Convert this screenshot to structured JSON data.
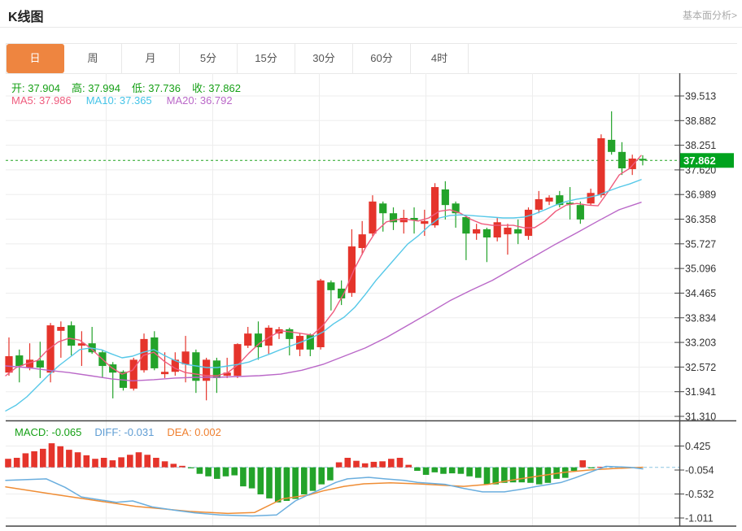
{
  "header": {
    "title": "K线图",
    "link_label": "基本面分析>"
  },
  "tabs": {
    "items": [
      {
        "label": "日",
        "active": true
      },
      {
        "label": "周"
      },
      {
        "label": "月"
      },
      {
        "label": "5分"
      },
      {
        "label": "15分"
      },
      {
        "label": "30分"
      },
      {
        "label": "60分"
      },
      {
        "label": "4时"
      }
    ]
  },
  "ohlc": {
    "open": "开: 37.904",
    "high": "高: 37.994",
    "low": "低: 37.736",
    "close": "收: 37.862"
  },
  "ma_legend": {
    "ma5": "MA5: 37.986",
    "ma10": "MA10: 37.365",
    "ma20": "MA20: 36.792"
  },
  "macd_legend": {
    "macd": "MACD: -0.065",
    "diff": "DIFF: -0.031",
    "dea": "DEA: 0.002"
  },
  "chart_data": {
    "type": "candlestick",
    "title": "K线图",
    "period_selected": "日",
    "current_price": 37.862,
    "current_price_label": "37.862",
    "open": 37.904,
    "high": 37.994,
    "low": 37.736,
    "close": 37.862,
    "ma5_value": 37.986,
    "ma10_value": 37.365,
    "ma20_value": 36.792,
    "colors": {
      "up": "#e5342b",
      "down": "#23a32a",
      "price_tag": "#00a31e",
      "ma5": "#ef5b7d",
      "ma10": "#56c8e8",
      "ma20": "#ba68c8",
      "diff_line": "#6aaede",
      "dea_line": "#ef8d35",
      "grid": "#ededed",
      "frame": "#444444",
      "dashed_price": "#21a321",
      "dashed_zero": "#8cc6e2"
    },
    "price_axis": {
      "ticks": [
        39.513,
        38.882,
        38.251,
        37.62,
        36.989,
        36.358,
        35.727,
        35.096,
        34.465,
        33.834,
        33.203,
        32.572,
        31.941,
        31.31
      ]
    },
    "candles_ohlc": [
      [
        32.43,
        33.33,
        32.35,
        32.85
      ],
      [
        32.87,
        33.02,
        32.18,
        32.6
      ],
      [
        32.56,
        33.18,
        32.49,
        32.76
      ],
      [
        32.74,
        33.22,
        32.29,
        32.56
      ],
      [
        32.43,
        33.7,
        32.18,
        33.64
      ],
      [
        33.5,
        33.74,
        32.81,
        33.6
      ],
      [
        33.64,
        33.74,
        32.87,
        33.12
      ],
      [
        33.12,
        33.49,
        32.6,
        33.18
      ],
      [
        33.18,
        33.6,
        32.91,
        32.95
      ],
      [
        32.95,
        33.02,
        32.29,
        32.6
      ],
      [
        32.64,
        32.7,
        31.77,
        32.43
      ],
      [
        32.45,
        32.49,
        31.97,
        32.04
      ],
      [
        32.02,
        32.81,
        31.97,
        32.76
      ],
      [
        32.49,
        33.43,
        32.43,
        33.29
      ],
      [
        33.33,
        33.49,
        32.49,
        32.54
      ],
      [
        32.39,
        32.95,
        32.29,
        32.45
      ],
      [
        32.45,
        32.95,
        32.35,
        32.76
      ],
      [
        32.64,
        33.37,
        32.18,
        32.97
      ],
      [
        32.95,
        33.02,
        31.91,
        32.22
      ],
      [
        32.22,
        32.81,
        31.72,
        32.76
      ],
      [
        32.74,
        32.81,
        31.91,
        32.29
      ],
      [
        32.35,
        32.81,
        32.29,
        32.43
      ],
      [
        32.35,
        33.18,
        32.29,
        33.16
      ],
      [
        33.12,
        33.6,
        33.06,
        33.43
      ],
      [
        33.43,
        33.74,
        32.76,
        33.08
      ],
      [
        33.12,
        33.64,
        32.91,
        33.58
      ],
      [
        33.43,
        33.6,
        33.29,
        33.54
      ],
      [
        33.54,
        33.58,
        32.87,
        33.29
      ],
      [
        33.02,
        33.43,
        32.85,
        33.37
      ],
      [
        33.39,
        33.43,
        32.85,
        33.02
      ],
      [
        33.08,
        34.83,
        33.02,
        34.79
      ],
      [
        34.74,
        34.79,
        34.02,
        34.54
      ],
      [
        34.58,
        34.79,
        34.16,
        34.33
      ],
      [
        34.47,
        36.1,
        34.37,
        35.66
      ],
      [
        35.62,
        36.31,
        35.45,
        35.97
      ],
      [
        35.99,
        36.97,
        35.93,
        36.81
      ],
      [
        36.76,
        36.81,
        36.04,
        36.51
      ],
      [
        36.51,
        36.66,
        36.08,
        36.28
      ],
      [
        36.28,
        36.6,
        35.99,
        36.39
      ],
      [
        36.39,
        36.66,
        35.99,
        36.33
      ],
      [
        36.24,
        36.6,
        35.93,
        36.31
      ],
      [
        36.2,
        37.28,
        36.14,
        37.18
      ],
      [
        37.12,
        37.33,
        36.35,
        36.72
      ],
      [
        36.76,
        36.81,
        36.14,
        36.51
      ],
      [
        36.41,
        36.45,
        35.31,
        35.99
      ],
      [
        35.99,
        36.24,
        35.83,
        36.1
      ],
      [
        36.1,
        36.14,
        35.26,
        35.89
      ],
      [
        35.89,
        36.39,
        35.79,
        36.28
      ],
      [
        35.97,
        36.24,
        35.45,
        36.14
      ],
      [
        36.1,
        36.35,
        35.72,
        35.99
      ],
      [
        35.93,
        36.66,
        35.83,
        36.6
      ],
      [
        36.6,
        37.08,
        36.51,
        36.87
      ],
      [
        36.81,
        36.97,
        36.72,
        36.91
      ],
      [
        36.97,
        37.08,
        36.66,
        36.72
      ],
      [
        36.78,
        37.18,
        36.35,
        36.74
      ],
      [
        36.72,
        36.81,
        36.24,
        36.35
      ],
      [
        36.76,
        37.14,
        36.7,
        37.03
      ],
      [
        36.97,
        38.53,
        36.91,
        38.43
      ],
      [
        38.39,
        39.12,
        38.01,
        38.08
      ],
      [
        38.08,
        38.33,
        37.49,
        37.66
      ],
      [
        37.64,
        38.01,
        37.49,
        37.91
      ],
      [
        37.904,
        37.994,
        37.736,
        37.862
      ]
    ],
    "ma5_points": [
      [
        7,
        32.35
      ],
      [
        20,
        32.56
      ],
      [
        33,
        32.66
      ],
      [
        46,
        32.74
      ],
      [
        59,
        33.02
      ],
      [
        72,
        33.22
      ],
      [
        85,
        33.31
      ],
      [
        98,
        33.26
      ],
      [
        111,
        33.06
      ],
      [
        124,
        32.81
      ],
      [
        137,
        32.56
      ],
      [
        150,
        32.39
      ],
      [
        163,
        32.49
      ],
      [
        176,
        32.87
      ],
      [
        189,
        32.95
      ],
      [
        202,
        32.72
      ],
      [
        215,
        32.54
      ],
      [
        228,
        32.43
      ],
      [
        241,
        32.39
      ],
      [
        254,
        32.35
      ],
      [
        267,
        32.35
      ],
      [
        280,
        32.43
      ],
      [
        293,
        32.64
      ],
      [
        306,
        32.93
      ],
      [
        319,
        33.18
      ],
      [
        332,
        33.35
      ],
      [
        345,
        33.5
      ],
      [
        358,
        33.47
      ],
      [
        371,
        33.43
      ],
      [
        384,
        33.39
      ],
      [
        397,
        33.64
      ],
      [
        410,
        33.99
      ],
      [
        423,
        34.47
      ],
      [
        436,
        35.1
      ],
      [
        449,
        35.62
      ],
      [
        462,
        36.04
      ],
      [
        475,
        36.29
      ],
      [
        488,
        36.35
      ],
      [
        501,
        36.35
      ],
      [
        514,
        36.31
      ],
      [
        527,
        36.39
      ],
      [
        540,
        36.56
      ],
      [
        553,
        36.6
      ],
      [
        566,
        36.51
      ],
      [
        579,
        36.35
      ],
      [
        592,
        36.24
      ],
      [
        605,
        36.2
      ],
      [
        618,
        36.2
      ],
      [
        631,
        36.2
      ],
      [
        644,
        36.14
      ],
      [
        657,
        36.14
      ],
      [
        670,
        36.31
      ],
      [
        683,
        36.56
      ],
      [
        696,
        36.72
      ],
      [
        709,
        36.76
      ],
      [
        722,
        36.72
      ],
      [
        735,
        36.7
      ],
      [
        748,
        37.08
      ],
      [
        761,
        37.49
      ],
      [
        774,
        37.66
      ],
      [
        788,
        37.99
      ]
    ],
    "ma10_points": [
      [
        7,
        31.45
      ],
      [
        20,
        31.6
      ],
      [
        33,
        31.81
      ],
      [
        46,
        32.08
      ],
      [
        59,
        32.35
      ],
      [
        72,
        32.6
      ],
      [
        85,
        32.81
      ],
      [
        98,
        33.02
      ],
      [
        111,
        33.06
      ],
      [
        124,
        33.02
      ],
      [
        137,
        32.91
      ],
      [
        150,
        32.81
      ],
      [
        163,
        32.85
      ],
      [
        176,
        32.95
      ],
      [
        189,
        33.02
      ],
      [
        202,
        32.87
      ],
      [
        215,
        32.74
      ],
      [
        228,
        32.64
      ],
      [
        241,
        32.6
      ],
      [
        254,
        32.56
      ],
      [
        267,
        32.56
      ],
      [
        280,
        32.6
      ],
      [
        293,
        32.64
      ],
      [
        306,
        32.7
      ],
      [
        319,
        32.81
      ],
      [
        332,
        32.91
      ],
      [
        345,
        33.02
      ],
      [
        358,
        33.12
      ],
      [
        371,
        33.22
      ],
      [
        384,
        33.33
      ],
      [
        397,
        33.47
      ],
      [
        410,
        33.68
      ],
      [
        423,
        33.85
      ],
      [
        436,
        34.1
      ],
      [
        449,
        34.43
      ],
      [
        462,
        34.79
      ],
      [
        475,
        35.1
      ],
      [
        488,
        35.41
      ],
      [
        501,
        35.72
      ],
      [
        514,
        35.93
      ],
      [
        527,
        36.18
      ],
      [
        540,
        36.39
      ],
      [
        553,
        36.45
      ],
      [
        566,
        36.47
      ],
      [
        579,
        36.45
      ],
      [
        592,
        36.43
      ],
      [
        605,
        36.41
      ],
      [
        618,
        36.39
      ],
      [
        631,
        36.39
      ],
      [
        644,
        36.41
      ],
      [
        657,
        36.49
      ],
      [
        670,
        36.6
      ],
      [
        683,
        36.72
      ],
      [
        696,
        36.81
      ],
      [
        709,
        36.87
      ],
      [
        722,
        36.91
      ],
      [
        735,
        36.97
      ],
      [
        748,
        37.08
      ],
      [
        761,
        37.18
      ],
      [
        774,
        37.26
      ],
      [
        788,
        37.37
      ]
    ],
    "ma20_points": [
      [
        7,
        32.6
      ],
      [
        33,
        32.56
      ],
      [
        59,
        32.49
      ],
      [
        85,
        32.43
      ],
      [
        111,
        32.35
      ],
      [
        137,
        32.27
      ],
      [
        163,
        32.22
      ],
      [
        189,
        32.25
      ],
      [
        215,
        32.29
      ],
      [
        241,
        32.31
      ],
      [
        267,
        32.31
      ],
      [
        293,
        32.33
      ],
      [
        319,
        32.35
      ],
      [
        345,
        32.39
      ],
      [
        371,
        32.49
      ],
      [
        397,
        32.64
      ],
      [
        423,
        32.85
      ],
      [
        449,
        33.06
      ],
      [
        475,
        33.33
      ],
      [
        501,
        33.64
      ],
      [
        527,
        33.95
      ],
      [
        553,
        34.27
      ],
      [
        579,
        34.54
      ],
      [
        605,
        34.79
      ],
      [
        631,
        35.1
      ],
      [
        657,
        35.41
      ],
      [
        683,
        35.72
      ],
      [
        709,
        36.01
      ],
      [
        735,
        36.31
      ],
      [
        761,
        36.6
      ],
      [
        788,
        36.79
      ]
    ],
    "macd": {
      "macd_value": -0.065,
      "diff_value": -0.031,
      "dea_value": 0.002,
      "axis_ticks": [
        0.425,
        -0.054,
        -0.532,
        -1.011
      ],
      "histogram": [
        0.17,
        0.19,
        0.28,
        0.32,
        0.37,
        0.48,
        0.42,
        0.35,
        0.3,
        0.24,
        0.17,
        0.19,
        0.14,
        0.2,
        0.25,
        0.3,
        0.25,
        0.19,
        0.12,
        0.07,
        0.03,
        -0.02,
        -0.13,
        -0.18,
        -0.23,
        -0.18,
        -0.16,
        -0.38,
        -0.42,
        -0.54,
        -0.62,
        -0.7,
        -0.67,
        -0.63,
        -0.54,
        -0.47,
        -0.34,
        -0.26,
        0.1,
        0.19,
        0.13,
        0.08,
        0.11,
        0.12,
        0.17,
        0.19,
        0.05,
        -0.07,
        -0.15,
        -0.1,
        -0.13,
        -0.12,
        -0.13,
        -0.18,
        -0.21,
        -0.34,
        -0.34,
        -0.31,
        -0.3,
        -0.3,
        -0.31,
        -0.34,
        -0.31,
        -0.23,
        -0.21,
        -0.07,
        0.14,
        -0.02,
        0.01
      ],
      "diff_points": [
        [
          7,
          -0.26
        ],
        [
          57,
          -0.23
        ],
        [
          80,
          -0.4
        ],
        [
          100,
          -0.59
        ],
        [
          143,
          -0.7
        ],
        [
          163,
          -0.67
        ],
        [
          187,
          -0.79
        ],
        [
          217,
          -0.86
        ],
        [
          240,
          -0.91
        ],
        [
          270,
          -0.95
        ],
        [
          310,
          -0.97
        ],
        [
          340,
          -0.95
        ],
        [
          363,
          -0.67
        ],
        [
          380,
          -0.54
        ],
        [
          397,
          -0.42
        ],
        [
          413,
          -0.3
        ],
        [
          427,
          -0.23
        ],
        [
          453,
          -0.2
        ],
        [
          473,
          -0.23
        ],
        [
          497,
          -0.26
        ],
        [
          513,
          -0.3
        ],
        [
          547,
          -0.34
        ],
        [
          570,
          -0.42
        ],
        [
          593,
          -0.49
        ],
        [
          620,
          -0.49
        ],
        [
          640,
          -0.44
        ],
        [
          660,
          -0.38
        ],
        [
          690,
          -0.3
        ],
        [
          707,
          -0.21
        ],
        [
          720,
          -0.13
        ],
        [
          733,
          -0.05
        ],
        [
          745,
          0.02
        ],
        [
          775,
          0.0
        ],
        [
          790,
          -0.031
        ]
      ],
      "dea_points": [
        [
          7,
          -0.39
        ],
        [
          67,
          -0.54
        ],
        [
          100,
          -0.62
        ],
        [
          133,
          -0.7
        ],
        [
          167,
          -0.78
        ],
        [
          200,
          -0.83
        ],
        [
          233,
          -0.88
        ],
        [
          280,
          -0.92
        ],
        [
          313,
          -0.9
        ],
        [
          347,
          -0.63
        ],
        [
          380,
          -0.55
        ],
        [
          397,
          -0.47
        ],
        [
          423,
          -0.38
        ],
        [
          447,
          -0.33
        ],
        [
          480,
          -0.31
        ],
        [
          513,
          -0.33
        ],
        [
          547,
          -0.36
        ],
        [
          570,
          -0.38
        ],
        [
          600,
          -0.34
        ],
        [
          627,
          -0.26
        ],
        [
          660,
          -0.18
        ],
        [
          693,
          -0.1
        ],
        [
          727,
          -0.05
        ],
        [
          760,
          -0.02
        ],
        [
          790,
          0.002
        ]
      ]
    }
  }
}
